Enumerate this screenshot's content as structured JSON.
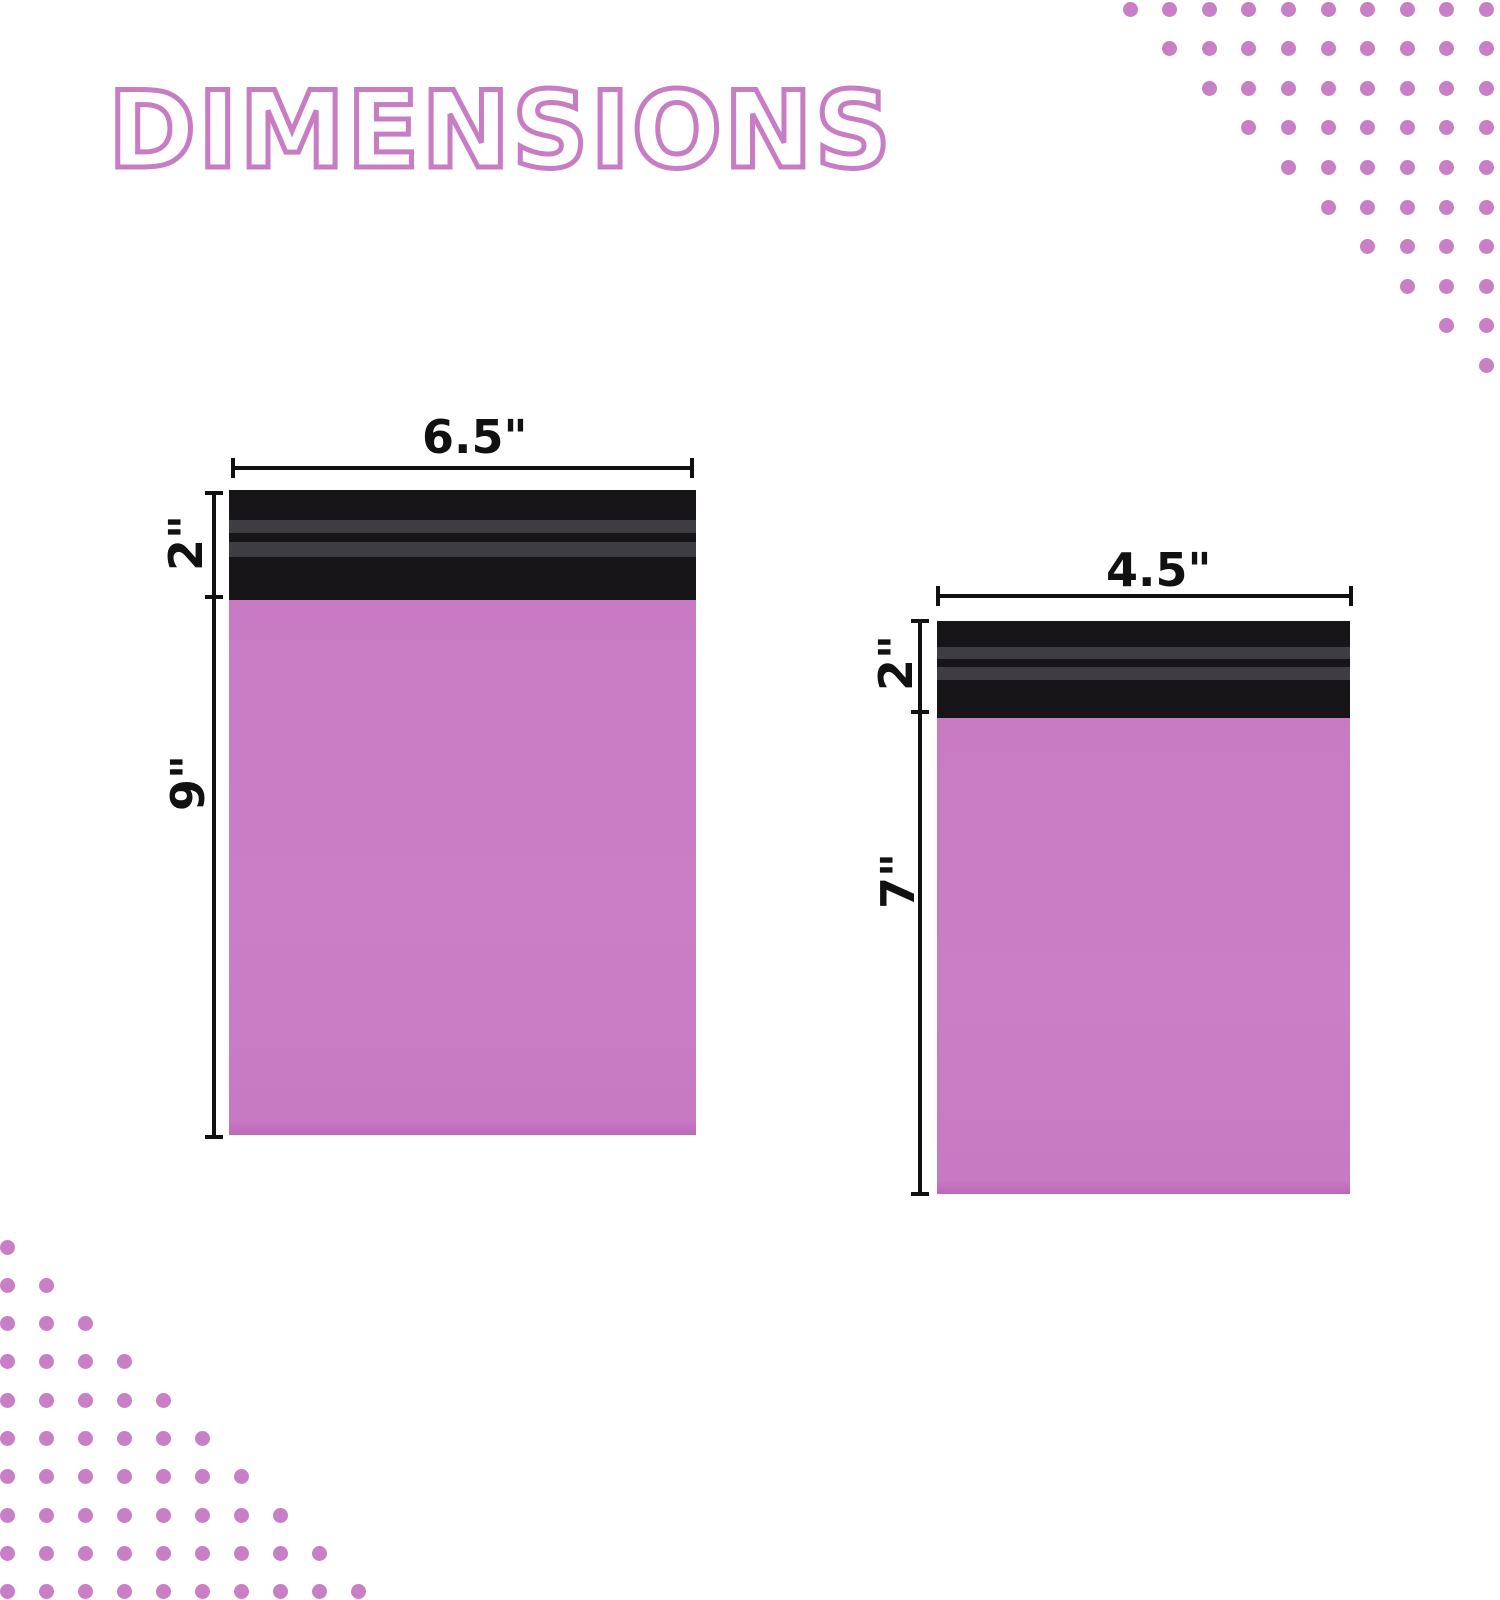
{
  "title": "DIMENSIONS",
  "colors": {
    "accent": "#c87cc4",
    "dot": "#c97fc6",
    "flap": "#171518",
    "stripe": "#3e3d41",
    "measure_line": "#111111"
  },
  "mailers": [
    {
      "width_label": "6.5\"",
      "flap_label": "2\"",
      "body_label": "9\""
    },
    {
      "width_label": "4.5\"",
      "flap_label": "2\"",
      "body_label": "7\""
    }
  ]
}
